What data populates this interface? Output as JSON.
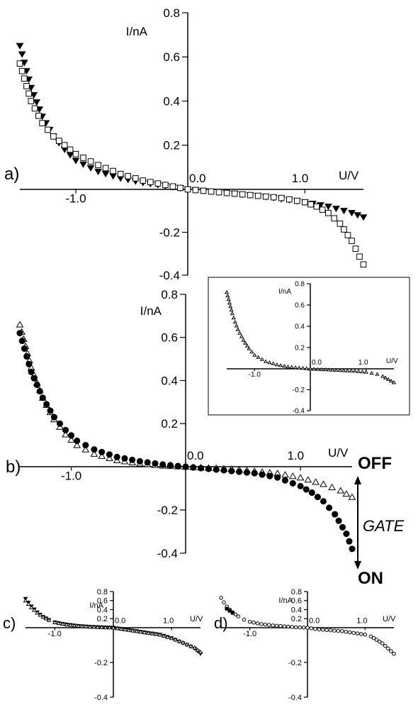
{
  "chart_data": [
    {
      "id": "a",
      "type": "scatter",
      "panel_label": "a)",
      "xlabel": "U/V",
      "ylabel": "I/nA",
      "xlim": [
        -1.5,
        1.5
      ],
      "ylim": [
        -0.4,
        0.8
      ],
      "x_ticks": [
        {
          "value": -1.0,
          "label": "-1.0"
        },
        {
          "value": 0.0,
          "label": "0.0"
        },
        {
          "value": 1.0,
          "label": "1.0"
        }
      ],
      "y_ticks": [
        {
          "value": 0.8,
          "label": "0.8"
        },
        {
          "value": 0.6,
          "label": "0.6"
        },
        {
          "value": 0.4,
          "label": "0.4"
        },
        {
          "value": 0.2,
          "label": "0.2"
        },
        {
          "value": -0.2,
          "label": "-0.2"
        },
        {
          "value": -0.4,
          "label": "-0.4"
        }
      ],
      "series": [
        {
          "marker": "triangle-down-filled",
          "x": [
            -1.5,
            -1.4,
            -1.3,
            -1.2,
            -1.1,
            -1.0,
            -0.8,
            -0.6,
            -0.4,
            -0.2,
            0.0,
            0.2,
            0.4,
            0.6,
            0.8,
            1.0,
            1.2,
            1.4,
            1.5
          ],
          "y": [
            0.65,
            0.46,
            0.33,
            0.24,
            0.18,
            0.13,
            0.08,
            0.05,
            0.03,
            0.015,
            0.0,
            -0.01,
            -0.02,
            -0.03,
            -0.045,
            -0.06,
            -0.08,
            -0.11,
            -0.13
          ]
        },
        {
          "marker": "square-open",
          "x": [
            -1.5,
            -1.4,
            -1.3,
            -1.2,
            -1.1,
            -1.0,
            -0.8,
            -0.6,
            -0.4,
            -0.2,
            0.0,
            0.2,
            0.4,
            0.6,
            0.8,
            1.0,
            1.1,
            1.2,
            1.3,
            1.4,
            1.5
          ],
          "y": [
            0.57,
            0.4,
            0.3,
            0.24,
            0.2,
            0.16,
            0.11,
            0.07,
            0.04,
            0.02,
            0.0,
            -0.01,
            -0.02,
            -0.03,
            -0.04,
            -0.06,
            -0.08,
            -0.11,
            -0.16,
            -0.24,
            -0.35
          ]
        }
      ]
    },
    {
      "id": "b",
      "type": "scatter",
      "panel_label": "b)",
      "xlabel": "U/V",
      "ylabel": "I/nA",
      "xlim": [
        -1.45,
        1.45
      ],
      "ylim": [
        -0.4,
        0.8
      ],
      "x_ticks": [
        {
          "value": -1.0,
          "label": "-1.0"
        },
        {
          "value": 0.0,
          "label": "0.0"
        },
        {
          "value": 1.0,
          "label": "1.0"
        }
      ],
      "y_ticks": [
        {
          "value": 0.8,
          "label": "0.8"
        },
        {
          "value": 0.6,
          "label": "0.6"
        },
        {
          "value": 0.4,
          "label": "0.4"
        },
        {
          "value": 0.2,
          "label": "0.2"
        },
        {
          "value": -0.2,
          "label": "-0.2"
        },
        {
          "value": -0.4,
          "label": "-0.4"
        }
      ],
      "series": [
        {
          "marker": "triangle-open",
          "state": "OFF",
          "x": [
            -1.45,
            -1.35,
            -1.25,
            -1.15,
            -1.05,
            -0.95,
            -0.8,
            -0.6,
            -0.4,
            -0.2,
            0.0,
            0.2,
            0.4,
            0.6,
            0.8,
            1.0,
            1.2,
            1.35,
            1.45
          ],
          "y": [
            0.66,
            0.46,
            0.32,
            0.22,
            0.15,
            0.1,
            0.06,
            0.03,
            0.015,
            0.005,
            0.0,
            -0.005,
            -0.01,
            -0.02,
            -0.03,
            -0.05,
            -0.08,
            -0.11,
            -0.14
          ]
        },
        {
          "marker": "circle-filled",
          "state": "ON",
          "x": [
            -1.45,
            -1.35,
            -1.25,
            -1.15,
            -1.05,
            -0.95,
            -0.8,
            -0.6,
            -0.4,
            -0.2,
            0.0,
            0.2,
            0.4,
            0.6,
            0.8,
            1.0,
            1.1,
            1.2,
            1.3,
            1.4,
            1.45
          ],
          "y": [
            0.62,
            0.44,
            0.32,
            0.23,
            0.17,
            0.12,
            0.08,
            0.045,
            0.025,
            0.01,
            0.0,
            -0.01,
            -0.02,
            -0.03,
            -0.05,
            -0.09,
            -0.12,
            -0.16,
            -0.22,
            -0.31,
            -0.38
          ]
        }
      ],
      "annotations": {
        "off_label": "OFF",
        "on_label": "ON",
        "gate_label": "GATE"
      }
    },
    {
      "id": "inset",
      "type": "scatter",
      "panel_label": "",
      "xlabel": "U/V",
      "ylabel": "I/nA",
      "xlim": [
        -1.5,
        1.5
      ],
      "ylim": [
        -0.4,
        0.8
      ],
      "x_ticks": [
        {
          "value": -1.0,
          "label": "-1.0"
        },
        {
          "value": 0.0,
          "label": "0.0"
        },
        {
          "value": 1.0,
          "label": "1.0"
        }
      ],
      "y_ticks": [
        {
          "value": 0.8,
          "label": "0.8"
        },
        {
          "value": 0.6,
          "label": "0.6"
        },
        {
          "value": 0.4,
          "label": "0.4"
        },
        {
          "value": 0.2,
          "label": "0.2"
        },
        {
          "value": -0.2,
          "label": "-0.2"
        },
        {
          "value": -0.4,
          "label": "-0.4"
        }
      ],
      "series": [
        {
          "marker": "triangle-open",
          "x": [
            -1.5,
            -1.45,
            -1.4,
            -1.35,
            -1.3,
            -1.2,
            -1.1,
            -1.0,
            -0.8,
            -0.6,
            -0.4,
            -0.2,
            0.0,
            0.2,
            0.4,
            0.6,
            0.8,
            1.0,
            1.1,
            1.2,
            1.3,
            1.4,
            1.5
          ],
          "y": [
            0.72,
            0.62,
            0.52,
            0.44,
            0.37,
            0.27,
            0.19,
            0.13,
            0.07,
            0.04,
            0.02,
            0.01,
            0.0,
            -0.005,
            -0.01,
            -0.015,
            -0.02,
            -0.03,
            -0.04,
            -0.05,
            -0.07,
            -0.1,
            -0.13
          ]
        }
      ]
    },
    {
      "id": "c",
      "type": "scatter",
      "panel_label": "c)",
      "xlabel": "U/V",
      "ylabel": "I/nA",
      "xlim": [
        -1.5,
        1.5
      ],
      "ylim": [
        -0.4,
        0.8
      ],
      "x_ticks": [
        {
          "value": -1.0,
          "label": "-1.0"
        },
        {
          "value": 0.0,
          "label": "0.0"
        },
        {
          "value": 1.0,
          "label": "1.0"
        }
      ],
      "y_ticks": [
        {
          "value": 0.8,
          "label": "0.8"
        },
        {
          "value": 0.6,
          "label": "0.6"
        },
        {
          "value": 0.4,
          "label": "0.4"
        },
        {
          "value": 0.2,
          "label": "0.2"
        },
        {
          "value": -0.2,
          "label": "-0.2"
        },
        {
          "value": -0.4,
          "label": "-0.4"
        }
      ],
      "series": [
        {
          "marker": "triangle-down-filled",
          "x": [
            -1.5,
            -1.4,
            -1.3,
            -1.2,
            -1.1,
            -1.0,
            -0.8,
            -0.6,
            -0.4,
            -0.2,
            0.0,
            0.2,
            0.4,
            0.6,
            0.8,
            1.0,
            1.2,
            1.4,
            1.5
          ],
          "y": [
            0.64,
            0.47,
            0.34,
            0.24,
            0.17,
            0.12,
            0.07,
            0.04,
            0.02,
            0.01,
            0.0,
            -0.01,
            -0.02,
            -0.03,
            -0.04,
            -0.06,
            -0.09,
            -0.12,
            -0.15
          ]
        },
        {
          "marker": "triangle-open",
          "x": [
            -1.5,
            -1.4,
            -1.3,
            -1.2,
            -1.1,
            -1.0,
            -0.8,
            -0.6,
            -0.4,
            -0.2,
            0.0,
            0.2,
            0.4,
            0.6,
            0.8,
            1.0,
            1.2,
            1.4,
            1.5
          ],
          "y": [
            0.6,
            0.45,
            0.33,
            0.24,
            0.17,
            0.12,
            0.07,
            0.04,
            0.02,
            0.01,
            0.0,
            -0.01,
            -0.02,
            -0.03,
            -0.04,
            -0.06,
            -0.085,
            -0.115,
            -0.14
          ]
        }
      ]
    },
    {
      "id": "d",
      "type": "scatter",
      "panel_label": "d)",
      "xlabel": "U/V",
      "ylabel": "I/nA",
      "xlim": [
        -1.5,
        1.5
      ],
      "ylim": [
        -0.4,
        0.8
      ],
      "x_ticks": [
        {
          "value": -1.0,
          "label": "-1.0"
        },
        {
          "value": 0.0,
          "label": "0.0"
        },
        {
          "value": 1.0,
          "label": "1.0"
        }
      ],
      "y_ticks": [
        {
          "value": 0.8,
          "label": "0.8"
        },
        {
          "value": 0.6,
          "label": "0.6"
        },
        {
          "value": 0.4,
          "label": "0.4"
        },
        {
          "value": 0.2,
          "label": "0.2"
        },
        {
          "value": -0.2,
          "label": "-0.2"
        },
        {
          "value": -0.4,
          "label": "-0.4"
        }
      ],
      "series": [
        {
          "marker": "circle-open",
          "x": [
            -1.5,
            -1.45,
            -1.4,
            -1.35,
            -1.3,
            -1.2,
            -1.1,
            -1.0,
            -0.8,
            -0.6,
            -0.4,
            -0.2,
            0.0,
            0.2,
            0.4,
            0.6,
            0.8,
            1.0,
            1.1,
            1.2,
            1.3,
            1.4,
            1.5
          ],
          "y": [
            0.66,
            0.56,
            0.47,
            0.4,
            0.34,
            0.25,
            0.18,
            0.13,
            0.08,
            0.05,
            0.03,
            0.01,
            0.0,
            -0.01,
            -0.015,
            -0.02,
            -0.03,
            -0.04,
            -0.05,
            -0.07,
            -0.09,
            -0.12,
            -0.15
          ]
        },
        {
          "marker": "square-filled",
          "x": [
            -1.4,
            -1.3
          ],
          "y": [
            0.42,
            0.33
          ]
        }
      ]
    }
  ]
}
